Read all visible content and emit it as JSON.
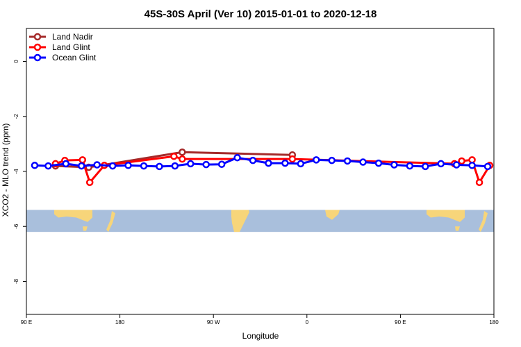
{
  "chart_data": {
    "type": "line",
    "title": "45S-30S April (Ver 10)   2015-01-01 to 2020-12-18",
    "xlabel": "Longitude",
    "ylabel": "XCO2 - MLO trend (ppm)",
    "xlim": [
      90,
      540
    ],
    "ylim": [
      -9.2,
      1.2
    ],
    "xticks": [
      {
        "value": 90,
        "label": "90 E"
      },
      {
        "value": 180,
        "label": "180"
      },
      {
        "value": 270,
        "label": "90 W"
      },
      {
        "value": 360,
        "label": "0"
      },
      {
        "value": 450,
        "label": "90 E"
      },
      {
        "value": 540,
        "label": "180"
      }
    ],
    "yticks": [
      {
        "value": 0,
        "label": "0"
      },
      {
        "value": -2,
        "label": "-2"
      },
      {
        "value": -4,
        "label": "-4"
      },
      {
        "value": -6,
        "label": "-6"
      },
      {
        "value": -8,
        "label": "-8"
      }
    ],
    "map_band": {
      "ymin": -6.2,
      "ymax": -5.4,
      "water_color": "#a9bfdc",
      "land_color": "#f7d57a"
    },
    "legend_position": "top-left",
    "series": [
      {
        "name": "Land Nadir",
        "color": "#a52a2a",
        "x": [
          118,
          150,
          240,
          346
        ],
        "y": [
          -3.8,
          -3.85,
          -3.3,
          -3.4
        ]
      },
      {
        "name": "Land Glint",
        "color": "#ff0000",
        "x": [
          118,
          127,
          144,
          151,
          165,
          232,
          240,
          346,
          502,
          509,
          519,
          526,
          536
        ],
        "y": [
          -3.72,
          -3.6,
          -3.58,
          -4.4,
          -3.78,
          -3.45,
          -3.55,
          -3.55,
          -3.72,
          -3.62,
          -3.58,
          -4.4,
          -3.78
        ]
      },
      {
        "name": "Ocean Glint",
        "color": "#0000ff",
        "x": [
          98,
          111,
          128,
          143,
          158,
          173,
          188,
          203,
          218,
          233,
          248,
          263,
          278,
          293,
          308,
          323,
          339,
          354,
          369,
          384,
          399,
          414,
          429,
          444,
          459,
          474,
          489,
          504,
          519,
          534
        ],
        "y": [
          -3.78,
          -3.8,
          -3.72,
          -3.8,
          -3.76,
          -3.8,
          -3.78,
          -3.8,
          -3.82,
          -3.8,
          -3.72,
          -3.75,
          -3.74,
          -3.5,
          -3.6,
          -3.7,
          -3.7,
          -3.72,
          -3.58,
          -3.6,
          -3.62,
          -3.66,
          -3.7,
          -3.76,
          -3.8,
          -3.82,
          -3.72,
          -3.76,
          -3.78,
          -3.82
        ]
      }
    ]
  }
}
